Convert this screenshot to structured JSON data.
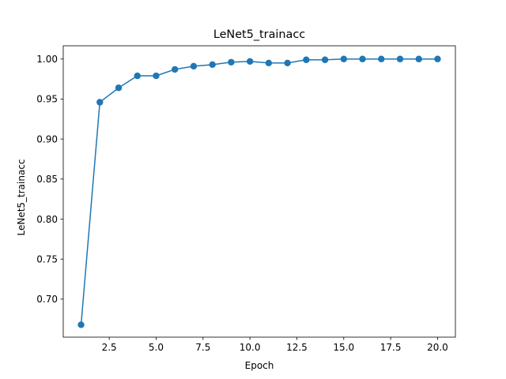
{
  "chart_data": {
    "type": "line",
    "title": "LeNet5_trainacc",
    "xlabel": "Epoch",
    "ylabel": "LeNet5_trainacc",
    "xlim": [
      0.05,
      20.95
    ],
    "ylim": [
      0.6525,
      1.0165
    ],
    "x_ticks": [
      2.5,
      5.0,
      7.5,
      10.0,
      12.5,
      15.0,
      17.5,
      20.0
    ],
    "x_tick_labels": [
      "2.5",
      "5.0",
      "7.5",
      "10.0",
      "12.5",
      "15.0",
      "17.5",
      "20.0"
    ],
    "y_ticks": [
      0.7,
      0.75,
      0.8,
      0.85,
      0.9,
      0.95,
      1.0
    ],
    "y_tick_labels": [
      "0.70",
      "0.75",
      "0.80",
      "0.85",
      "0.90",
      "0.95",
      "1.00"
    ],
    "grid": false,
    "marker": "circle",
    "color": "#1f77b4",
    "x": [
      1,
      2,
      3,
      4,
      5,
      6,
      7,
      8,
      9,
      10,
      11,
      12,
      13,
      14,
      15,
      16,
      17,
      18,
      19,
      20
    ],
    "series": [
      {
        "values": [
          0.668,
          0.946,
          0.964,
          0.979,
          0.979,
          0.987,
          0.991,
          0.993,
          0.996,
          0.997,
          0.995,
          0.995,
          0.999,
          0.999,
          1.0,
          1.0,
          1.0,
          1.0,
          1.0,
          1.0
        ]
      }
    ]
  }
}
